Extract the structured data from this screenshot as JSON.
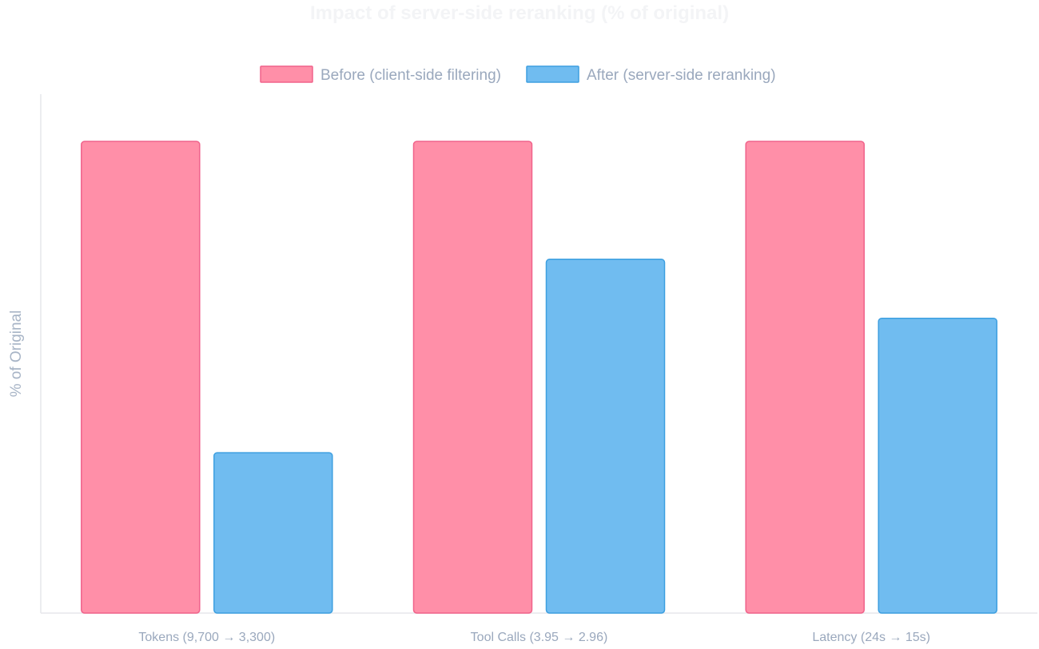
{
  "chart_data": {
    "type": "bar",
    "title": "Impact of server-side reranking (% of original)",
    "ylabel": "% of Original",
    "xlabel": "",
    "categories": [
      "Tokens (9,700 → 3,300)",
      "Tool Calls (3.95 → 2.96)",
      "Latency (24s → 15s)"
    ],
    "series": [
      {
        "name": "Before (client-side filtering)",
        "values": [
          100,
          100,
          100
        ],
        "color": "#ff8fa8",
        "border": "#f0628a"
      },
      {
        "name": "After (server-side reranking)",
        "values": [
          34,
          75,
          62.5
        ],
        "color": "#70bcf0",
        "border": "#3d9fe0"
      }
    ],
    "ylim": [
      0,
      110
    ],
    "grid": false,
    "legend_position": "top-center"
  }
}
